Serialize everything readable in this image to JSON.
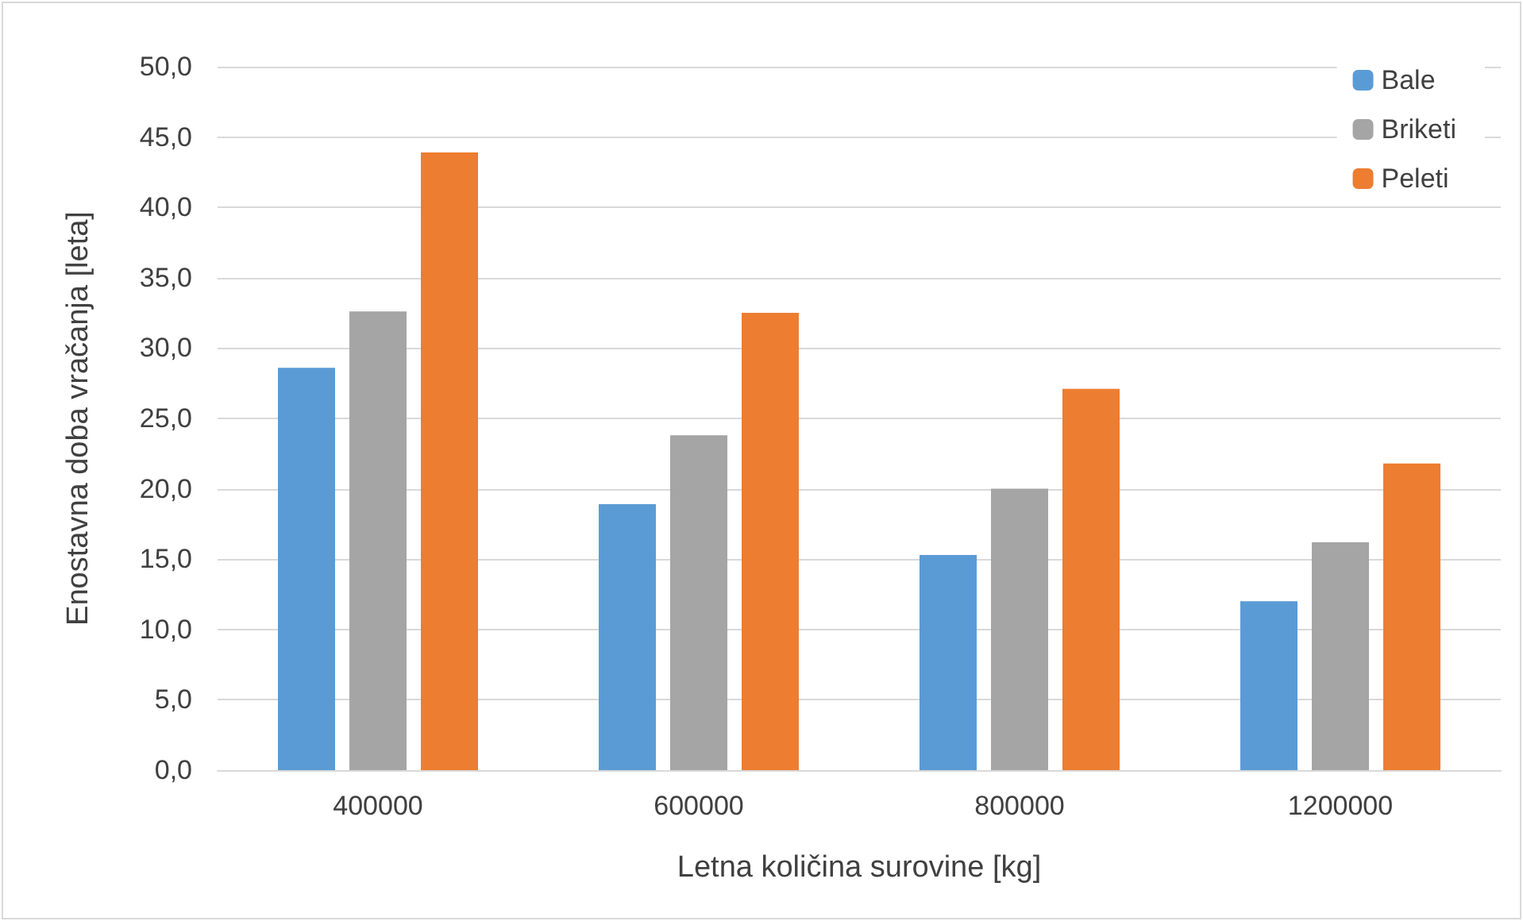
{
  "chart_data": {
    "type": "bar",
    "xlabel": "Letna količina surovine [kg]",
    "ylabel": "Enostavna doba vračanja [leta]",
    "categories": [
      "400000",
      "600000",
      "800000",
      "1200000"
    ],
    "series": [
      {
        "name": "Bale",
        "color": "#5b9bd5",
        "values": [
          28.6,
          18.9,
          15.3,
          12.0
        ]
      },
      {
        "name": "Briketi",
        "color": "#a5a5a5",
        "values": [
          32.6,
          23.8,
          20.0,
          16.2
        ]
      },
      {
        "name": "Peleti",
        "color": "#ed7d31",
        "values": [
          43.9,
          32.5,
          27.1,
          21.8
        ]
      }
    ],
    "ylim": [
      0,
      50
    ],
    "yticks": [
      {
        "value": 0,
        "label": "0,0"
      },
      {
        "value": 5,
        "label": "5,0"
      },
      {
        "value": 10,
        "label": "10,0"
      },
      {
        "value": 15,
        "label": "15,0"
      },
      {
        "value": 20,
        "label": "20,0"
      },
      {
        "value": 25,
        "label": "25,0"
      },
      {
        "value": 30,
        "label": "30,0"
      },
      {
        "value": 35,
        "label": "35,0"
      },
      {
        "value": 40,
        "label": "40,0"
      },
      {
        "value": 45,
        "label": "45,0"
      },
      {
        "value": 50,
        "label": "50,0"
      }
    ],
    "grid": "y",
    "legend": "top right"
  }
}
